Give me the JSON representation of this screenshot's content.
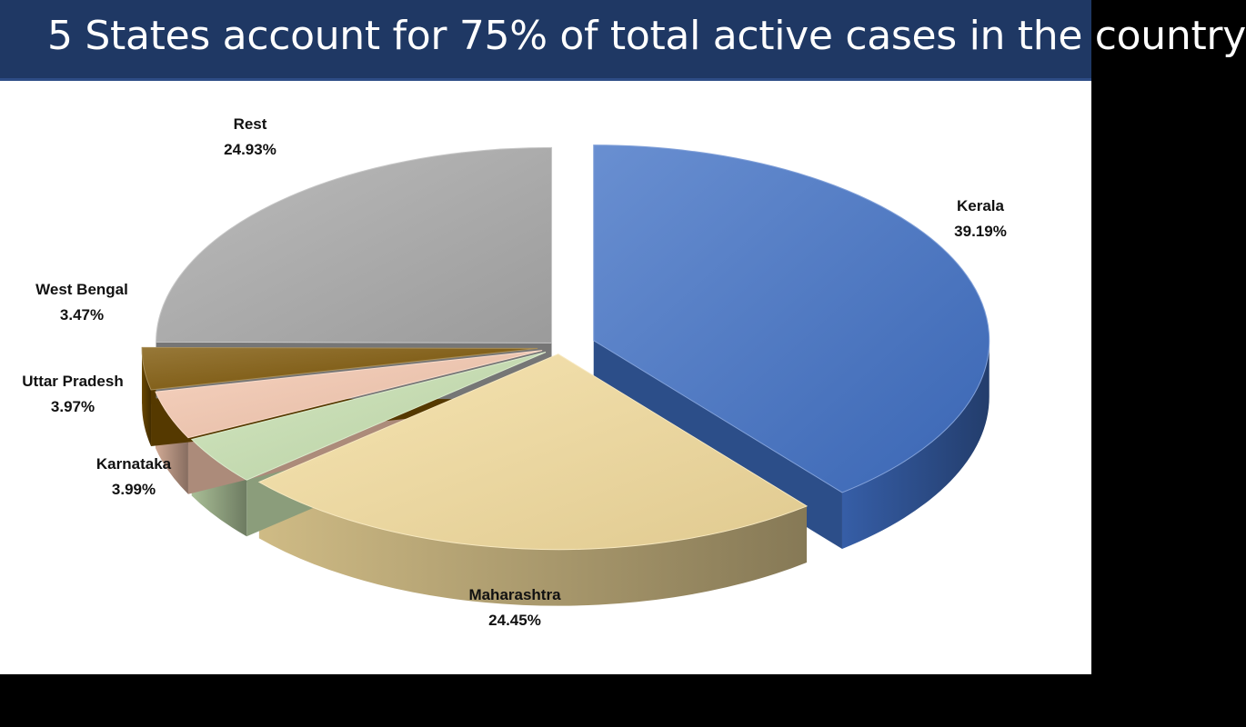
{
  "title": "5 States account for 75% of total active cases in the country",
  "colors": {
    "header_bg": "#1f3864",
    "Kerala": "#3f6fc4",
    "Maharashtra": "#f3dc9c",
    "Karnataka": "#c7e0b0",
    "Uttar Pradesh": "#f5c7ae",
    "West Bengal": "#7a5200",
    "Rest": "#a9a9a9"
  },
  "chart_data": {
    "type": "pie",
    "style": "3d-exploded",
    "title": "5 States account for 75% of total active cases in the country",
    "slices": [
      {
        "name": "Kerala",
        "value": 39.19,
        "label": "39.19%"
      },
      {
        "name": "Maharashtra",
        "value": 24.45,
        "label": "24.45%"
      },
      {
        "name": "Karnataka",
        "value": 3.99,
        "label": "3.99%"
      },
      {
        "name": "Uttar Pradesh",
        "value": 3.97,
        "label": "3.97%"
      },
      {
        "name": "West Bengal",
        "value": 3.47,
        "label": "3.47%"
      },
      {
        "name": "Rest",
        "value": 24.93,
        "label": "24.93%"
      }
    ]
  }
}
